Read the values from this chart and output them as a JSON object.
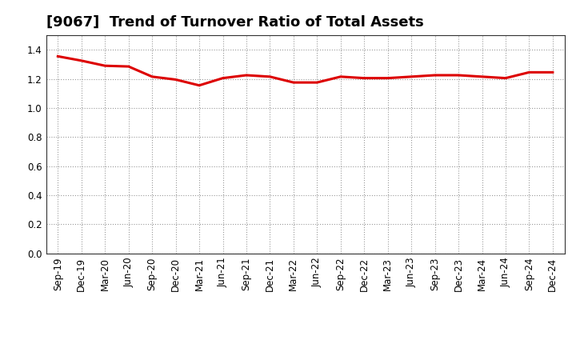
{
  "title": "[9067]  Trend of Turnover Ratio of Total Assets",
  "x_labels": [
    "Sep-19",
    "Dec-19",
    "Mar-20",
    "Jun-20",
    "Sep-20",
    "Dec-20",
    "Mar-21",
    "Jun-21",
    "Sep-21",
    "Dec-21",
    "Mar-22",
    "Jun-22",
    "Sep-22",
    "Dec-22",
    "Mar-23",
    "Jun-23",
    "Sep-23",
    "Dec-23",
    "Mar-24",
    "Jun-24",
    "Sep-24",
    "Dec-24"
  ],
  "values": [
    1.355,
    1.325,
    1.29,
    1.285,
    1.215,
    1.195,
    1.155,
    1.205,
    1.225,
    1.215,
    1.175,
    1.175,
    1.215,
    1.205,
    1.205,
    1.215,
    1.225,
    1.225,
    1.215,
    1.205,
    1.245,
    1.245
  ],
  "line_color": "#dd0000",
  "line_width": 2.2,
  "background_color": "#ffffff",
  "plot_bg_color": "#ffffff",
  "grid_color": "#999999",
  "ylim": [
    0.0,
    1.5
  ],
  "yticks": [
    0.0,
    0.2,
    0.4,
    0.6,
    0.8,
    1.0,
    1.2,
    1.4
  ],
  "title_fontsize": 13,
  "tick_fontsize": 8.5
}
